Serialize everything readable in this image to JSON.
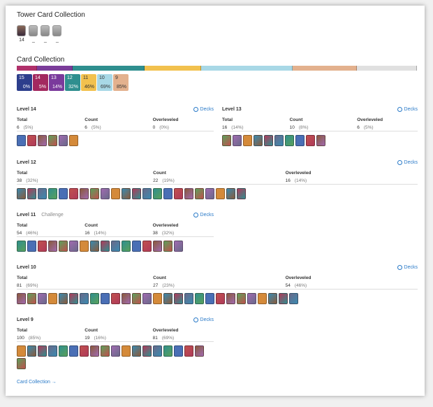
{
  "tower_collection": {
    "title": "Tower Card Collection",
    "towers": [
      {
        "label": "14",
        "active": true
      },
      {
        "label": "_",
        "active": false
      },
      {
        "label": "_",
        "active": false
      },
      {
        "label": "_",
        "active": false
      }
    ]
  },
  "card_collection": {
    "title": "Card Collection",
    "bar": [
      {
        "color": "#b0306a",
        "fraction": 0.05
      },
      {
        "color": "#7b3d9a",
        "fraction": 0.14
      },
      {
        "color": "#2f8f8f",
        "fraction": 0.32
      },
      {
        "color": "#f2c14e",
        "fraction": 0.46
      },
      {
        "color": "#a8d8e6",
        "fraction": 0.69
      },
      {
        "color": "#e3b18e",
        "fraction": 0.85
      },
      {
        "color": "#e0e0e0",
        "fraction": 1.0
      }
    ],
    "badges": [
      {
        "level": "15",
        "percent": "0%",
        "bg": "#2d3e8c",
        "fg": "#ffffff"
      },
      {
        "level": "14",
        "percent": "5%",
        "bg": "#a3285f",
        "fg": "#ffffff"
      },
      {
        "level": "13",
        "percent": "14%",
        "bg": "#7a3a9c",
        "fg": "#ffffff"
      },
      {
        "level": "12",
        "percent": "32%",
        "bg": "#2f8f8f",
        "fg": "#ffffff"
      },
      {
        "level": "11",
        "percent": "46%",
        "bg": "#f2c14e",
        "fg": "#333333"
      },
      {
        "level": "10",
        "percent": "69%",
        "bg": "#a8d8e6",
        "fg": "#333333"
      },
      {
        "level": "9",
        "percent": "85%",
        "bg": "#e3b18e",
        "fg": "#333333"
      }
    ]
  },
  "sections": [
    {
      "title": "Level 14",
      "subtitle": "",
      "decks": "Decks",
      "total": "6",
      "total_pct": "(5%)",
      "count": "6",
      "count_pct": "(5%)",
      "over": "0",
      "over_pct": "(0%)",
      "ncards": 6
    },
    {
      "title": "Level 13",
      "subtitle": "",
      "decks": "Decks",
      "total": "16",
      "total_pct": "(14%)",
      "count": "10",
      "count_pct": "(8%)",
      "over": "6",
      "over_pct": "(5%)",
      "ncards": 10
    },
    {
      "title": "Level 12",
      "subtitle": "",
      "decks": "Decks",
      "total": "38",
      "total_pct": "(32%)",
      "count": "22",
      "count_pct": "(19%)",
      "over": "16",
      "over_pct": "(14%)",
      "ncards": 22
    },
    {
      "title": "Level 11",
      "subtitle": "Challenge",
      "decks": "Decks",
      "total": "54",
      "total_pct": "(46%)",
      "count": "16",
      "count_pct": "(14%)",
      "over": "38",
      "over_pct": "(32%)",
      "ncards": 16
    },
    {
      "title": "Level 10",
      "subtitle": "",
      "decks": "Decks",
      "total": "81",
      "total_pct": "(69%)",
      "count": "27",
      "count_pct": "(23%)",
      "over": "54",
      "over_pct": "(46%)",
      "ncards": 27
    },
    {
      "title": "Level 9",
      "subtitle": "",
      "decks": "Decks",
      "total": "100",
      "total_pct": "(85%)",
      "count": "19",
      "count_pct": "(16%)",
      "over": "81",
      "over_pct": "(69%)",
      "ncards": 19
    }
  ],
  "labels": {
    "total": "Total",
    "count": "Count",
    "overleveled": "Overleveled"
  },
  "footer": {
    "link": "Card Collection →"
  }
}
